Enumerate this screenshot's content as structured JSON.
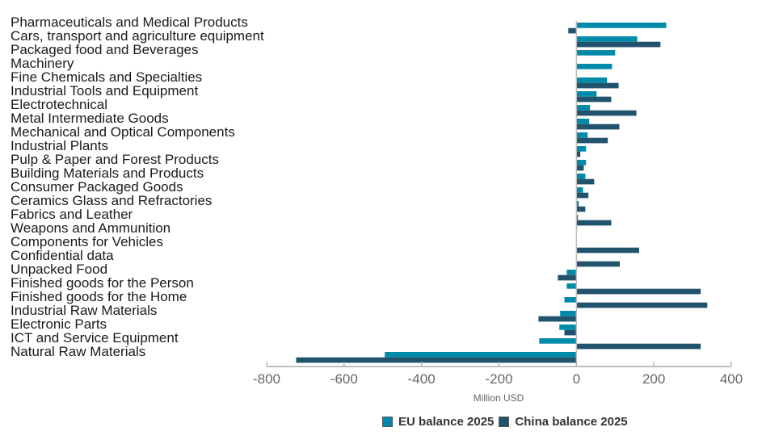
{
  "chart_data": {
    "type": "bar",
    "orientation": "horizontal",
    "title": "",
    "xlabel": "Million USD",
    "ylabel": "",
    "xlim": [
      -800,
      400
    ],
    "xticks": [
      -800,
      -600,
      -400,
      -200,
      0,
      200,
      400
    ],
    "xtick_labels": [
      "-800",
      "-600",
      "-400",
      "-200",
      "0",
      "200",
      "400"
    ],
    "grid": false,
    "legend_position": "bottom-center",
    "categories": [
      "Pharmaceuticals and Medical Products",
      "Cars, transport and agriculture equipment",
      "Packaged food and Beverages",
      "Machinery",
      "Fine Chemicals and Specialties",
      "Industrial Tools and Equipment",
      "Electrotechnical",
      "Metal Intermediate Goods",
      "Mechanical and Optical Components",
      "Industrial Plants",
      "Pulp & Paper and Forest Products",
      "Building Materials and Products",
      "Consumer Packaged Goods",
      "Ceramics Glass and Refractories",
      "Fabrics and Leather",
      "Weapons and Ammunition",
      "Components for Vehicles",
      "Confidential data",
      "Unpacked Food",
      "Finished goods for the Person",
      "Finished goods for the Home",
      "Industrial Raw Materials",
      "Electronic Parts",
      "ICT and Service Equipment",
      "Natural Raw Materials"
    ],
    "series": [
      {
        "name": "EU balance 2025",
        "color": "#008aaa",
        "values": [
          232,
          157,
          100,
          92,
          79,
          52,
          35,
          33,
          29,
          25,
          25,
          23,
          17,
          6,
          4,
          0,
          -1,
          -1,
          -25,
          -25,
          -31,
          -42,
          -44,
          -96,
          -495
        ]
      },
      {
        "name": "China balance 2025",
        "color": "#22536c",
        "values": [
          -21,
          217,
          1,
          -1,
          109,
          90,
          155,
          111,
          81,
          10,
          19,
          46,
          31,
          23,
          90,
          0,
          162,
          112,
          -48,
          321,
          338,
          -98,
          -31,
          321,
          -724
        ]
      }
    ]
  },
  "legend": {
    "items": [
      {
        "label": "EU balance 2025",
        "color": "#008aaa"
      },
      {
        "label": "China balance 2025",
        "color": "#22536c"
      }
    ]
  }
}
